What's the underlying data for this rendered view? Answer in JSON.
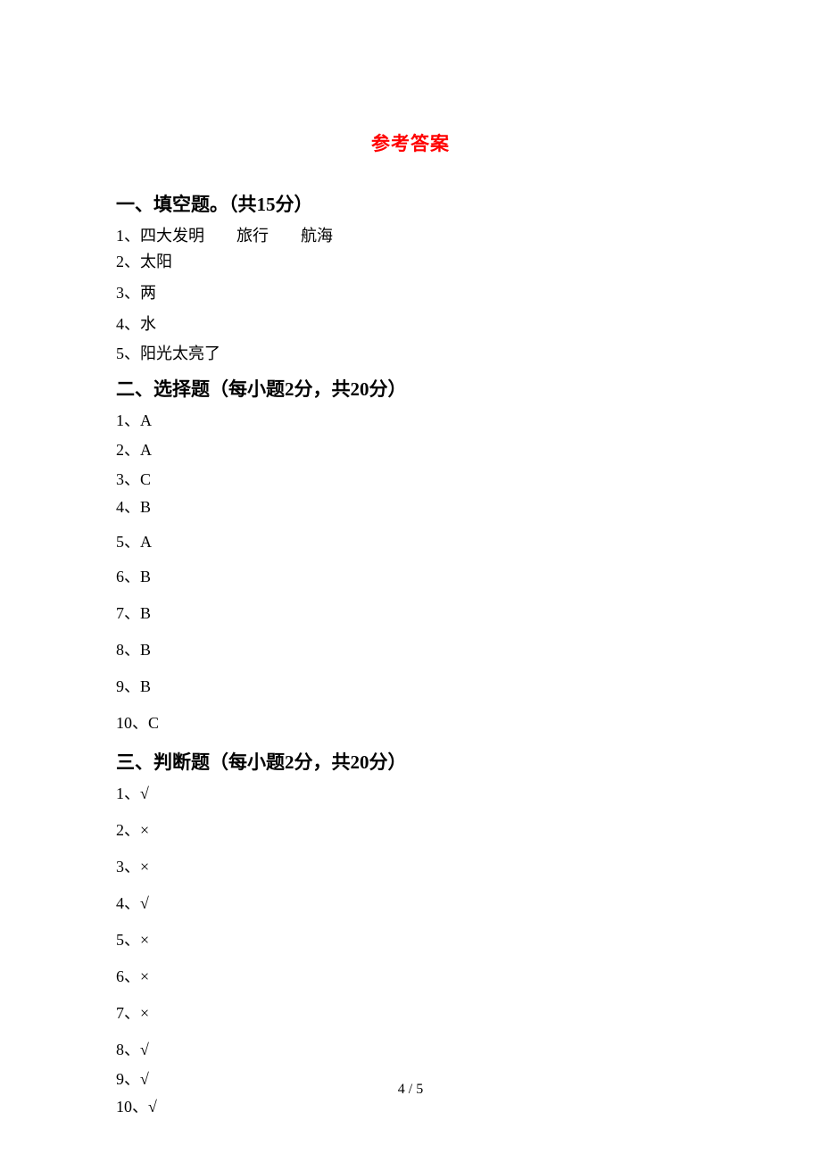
{
  "title": "参考答案",
  "sections": [
    {
      "header": "一、填空题。（共15分）",
      "answers": [
        "1、四大发明　　旅行　　航海",
        "2、太阳",
        "3、两",
        "4、水",
        "5、阳光太亮了"
      ]
    },
    {
      "header": "二、选择题（每小题2分，共20分）",
      "answers": [
        "1、A",
        "2、A",
        "3、C",
        "4、B",
        "5、A",
        "6、B",
        "7、B",
        "8、B",
        "9、B",
        "10、C"
      ]
    },
    {
      "header": "三、判断题（每小题2分，共20分）",
      "answers": [
        "1、√",
        "2、×",
        "3、×",
        "4、√",
        "5、×",
        "6、×",
        "7、×",
        "8、√",
        "9、√",
        "10、√"
      ]
    }
  ],
  "pageNumber": "4 / 5",
  "colors": {
    "title": "#ff0000",
    "text": "#000000",
    "background": "#ffffff"
  }
}
